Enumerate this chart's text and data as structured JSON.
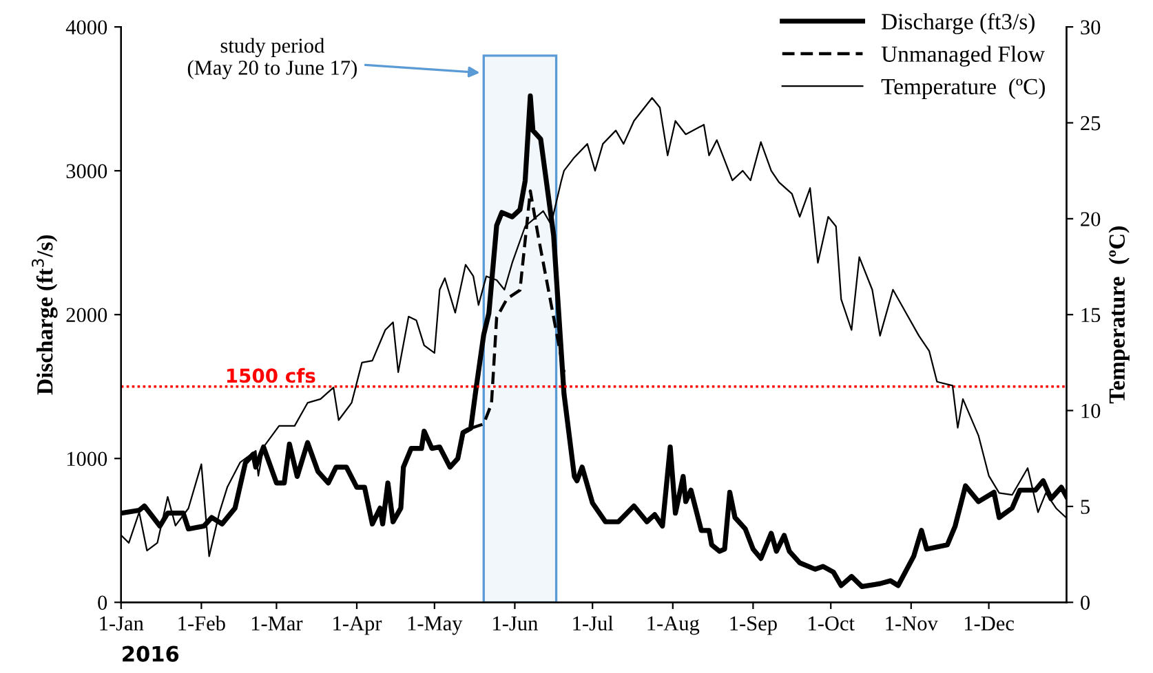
{
  "chart_data": {
    "type": "line",
    "xlabel": "2016",
    "ylabel": "Discharge (ft$^{3}$/s)",
    "y2label": "Temperature  (ºC)",
    "xlim": [
      "2016-01-01",
      "2016-12-31"
    ],
    "xticks": [
      {
        "value": "2016-01-01",
        "label": "1-Jan"
      },
      {
        "value": "2016-02-01",
        "label": "1-Feb"
      },
      {
        "value": "2016-03-01",
        "label": "1-Mar"
      },
      {
        "value": "2016-04-01",
        "label": "1-Apr"
      },
      {
        "value": "2016-05-01",
        "label": "1-May"
      },
      {
        "value": "2016-06-01",
        "label": "1-Jun"
      },
      {
        "value": "2016-07-01",
        "label": "1-Jul"
      },
      {
        "value": "2016-08-01",
        "label": "1-Aug"
      },
      {
        "value": "2016-09-01",
        "label": "1-Sep"
      },
      {
        "value": "2016-10-01",
        "label": "1-Oct"
      },
      {
        "value": "2016-11-01",
        "label": "1-Nov"
      },
      {
        "value": "2016-12-01",
        "label": "1-Dec"
      }
    ],
    "ylim": [
      0,
      4000
    ],
    "yticks": [
      0,
      1000,
      2000,
      3000,
      4000
    ],
    "y2lim": [
      0,
      30
    ],
    "y2ticks": [
      0,
      5,
      10,
      15,
      20,
      25,
      30
    ],
    "legend": "top right",
    "grid": false,
    "marker": "none",
    "series": [
      {
        "name": "Discharge (ft3/s)",
        "color": "#000000",
        "line_style": "solid",
        "x": [
          "2016-01-01",
          "2016-01-08",
          "2016-01-10",
          "2016-01-16",
          "2016-01-19",
          "2016-01-25",
          "2016-01-27",
          "2016-02-02",
          "2016-02-05",
          "2016-02-09",
          "2016-02-14",
          "2016-02-18",
          "2016-02-21",
          "2016-02-22",
          "2016-02-25",
          "2016-03-01",
          "2016-03-04",
          "2016-03-06",
          "2016-03-09",
          "2016-03-13",
          "2016-03-17",
          "2016-03-21",
          "2016-03-24",
          "2016-03-28",
          "2016-04-01",
          "2016-04-04",
          "2016-04-07",
          "2016-04-10",
          "2016-04-11",
          "2016-04-13",
          "2016-04-15",
          "2016-04-18",
          "2016-04-19",
          "2016-04-22",
          "2016-04-26",
          "2016-04-27",
          "2016-04-30",
          "2016-05-03",
          "2016-05-07",
          "2016-05-10",
          "2016-05-12",
          "2016-05-15",
          "2016-05-17",
          "2016-05-20",
          "2016-05-22",
          "2016-05-25",
          "2016-05-27",
          "2016-05-31",
          "2016-06-03",
          "2016-06-05",
          "2016-06-07",
          "2016-06-08",
          "2016-06-11",
          "2016-06-16",
          "2016-06-20",
          "2016-06-24",
          "2016-06-25",
          "2016-06-27",
          "2016-07-01",
          "2016-07-06",
          "2016-07-11",
          "2016-07-17",
          "2016-07-22",
          "2016-07-25",
          "2016-07-28",
          "2016-07-31",
          "2016-08-02",
          "2016-08-05",
          "2016-08-06",
          "2016-08-08",
          "2016-08-12",
          "2016-08-15",
          "2016-08-16",
          "2016-08-19",
          "2016-08-21",
          "2016-08-23",
          "2016-08-25",
          "2016-08-29",
          "2016-09-01",
          "2016-09-04",
          "2016-09-08",
          "2016-09-10",
          "2016-09-13",
          "2016-09-15",
          "2016-09-19",
          "2016-09-25",
          "2016-09-28",
          "2016-10-02",
          "2016-10-05",
          "2016-10-09",
          "2016-10-13",
          "2016-10-20",
          "2016-10-24",
          "2016-10-27",
          "2016-11-02",
          "2016-11-05",
          "2016-11-07",
          "2016-11-15",
          "2016-11-18",
          "2016-11-22",
          "2016-11-27",
          "2016-12-03",
          "2016-12-05",
          "2016-12-10",
          "2016-12-13",
          "2016-12-19",
          "2016-12-22",
          "2016-12-25",
          "2016-12-29",
          "2016-12-31"
        ],
        "values": [
          620,
          640,
          670,
          530,
          620,
          620,
          510,
          530,
          590,
          545,
          655,
          970,
          1030,
          940,
          1080,
          830,
          830,
          1100,
          875,
          1110,
          910,
          830,
          940,
          940,
          800,
          800,
          545,
          655,
          545,
          830,
          560,
          655,
          940,
          1070,
          1070,
          1190,
          1070,
          1080,
          940,
          1000,
          1180,
          1210,
          1480,
          1860,
          2010,
          2620,
          2710,
          2680,
          2730,
          2930,
          3520,
          3280,
          3220,
          2550,
          1450,
          875,
          845,
          940,
          690,
          560,
          560,
          670,
          560,
          610,
          530,
          1080,
          620,
          875,
          700,
          780,
          500,
          500,
          400,
          355,
          370,
          765,
          590,
          510,
          370,
          305,
          480,
          355,
          465,
          355,
          275,
          230,
          250,
          210,
          117,
          180,
          110,
          130,
          150,
          117,
          320,
          500,
          370,
          400,
          530,
          810,
          700,
          765,
          590,
          655,
          780,
          780,
          845,
          720,
          800,
          735
        ]
      },
      {
        "name": "Unmanaged Flow",
        "color": "#000000",
        "line_style": "dashed",
        "x": [
          "2016-05-15",
          "2016-05-20",
          "2016-05-23",
          "2016-05-25",
          "2016-05-29",
          "2016-06-03",
          "2016-06-07",
          "2016-06-10",
          "2016-06-16",
          "2016-06-20"
        ],
        "values": [
          1210,
          1240,
          1380,
          1980,
          2110,
          2170,
          2860,
          2550,
          1980,
          1600
        ]
      },
      {
        "name": "Temperature  (ºC)",
        "color": "#000000",
        "line_style": "solid",
        "axis": "y2",
        "x": [
          "2016-01-01",
          "2016-01-04",
          "2016-01-08",
          "2016-01-11",
          "2016-01-15",
          "2016-01-19",
          "2016-01-22",
          "2016-01-27",
          "2016-02-01",
          "2016-02-04",
          "2016-02-08",
          "2016-02-11",
          "2016-02-16",
          "2016-02-22",
          "2016-02-23",
          "2016-02-25",
          "2016-03-02",
          "2016-03-08",
          "2016-03-13",
          "2016-03-18",
          "2016-03-23",
          "2016-03-25",
          "2016-03-30",
          "2016-04-03",
          "2016-04-07",
          "2016-04-12",
          "2016-04-15",
          "2016-04-17",
          "2016-04-21",
          "2016-04-24",
          "2016-04-27",
          "2016-05-01",
          "2016-05-03",
          "2016-05-05",
          "2016-05-09",
          "2016-05-13",
          "2016-05-16",
          "2016-05-18",
          "2016-05-21",
          "2016-05-25",
          "2016-05-28",
          "2016-05-31",
          "2016-06-05",
          "2016-06-12",
          "2016-06-15",
          "2016-06-19",
          "2016-06-20",
          "2016-06-24",
          "2016-06-29",
          "2016-07-02",
          "2016-07-05",
          "2016-07-10",
          "2016-07-13",
          "2016-07-17",
          "2016-07-24",
          "2016-07-27",
          "2016-07-30",
          "2016-08-02",
          "2016-08-06",
          "2016-08-13",
          "2016-08-15",
          "2016-08-18",
          "2016-08-24",
          "2016-08-28",
          "2016-08-31",
          "2016-09-04",
          "2016-09-08",
          "2016-09-11",
          "2016-09-16",
          "2016-09-19",
          "2016-09-23",
          "2016-09-26",
          "2016-09-28",
          "2016-09-30",
          "2016-10-03",
          "2016-10-05",
          "2016-10-09",
          "2016-10-12",
          "2016-10-17",
          "2016-10-20",
          "2016-10-25",
          "2016-10-30",
          "2016-11-04",
          "2016-11-08",
          "2016-11-11",
          "2016-11-17",
          "2016-11-19",
          "2016-11-21",
          "2016-11-27",
          "2016-12-01",
          "2016-12-05",
          "2016-12-10",
          "2016-12-16",
          "2016-12-20",
          "2016-12-23",
          "2016-12-27",
          "2016-12-31"
        ],
        "values": [
          3.5,
          3.1,
          4.7,
          2.7,
          3.1,
          5.5,
          4.0,
          4.9,
          7.2,
          2.4,
          4.7,
          6.0,
          7.3,
          7.9,
          6.6,
          8.1,
          9.2,
          9.2,
          10.4,
          10.6,
          11.2,
          9.5,
          10.4,
          12.5,
          12.6,
          14.2,
          14.6,
          12.0,
          14.9,
          14.7,
          13.4,
          13.0,
          16.3,
          16.9,
          15.1,
          17.6,
          17.0,
          15.5,
          17.0,
          16.8,
          16.3,
          17.7,
          19.6,
          20.4,
          19.7,
          22.0,
          22.5,
          23.2,
          23.9,
          22.5,
          23.9,
          24.6,
          23.9,
          25.1,
          26.3,
          25.8,
          23.3,
          25.1,
          24.4,
          24.9,
          23.3,
          24.1,
          22.0,
          22.5,
          22.0,
          24.0,
          22.5,
          21.9,
          21.3,
          20.1,
          21.6,
          17.7,
          18.9,
          20.1,
          19.6,
          15.8,
          14.2,
          18.0,
          16.3,
          13.9,
          16.3,
          15.1,
          13.9,
          13.1,
          11.5,
          11.3,
          9.1,
          10.6,
          8.7,
          6.6,
          5.7,
          5.6,
          7.0,
          4.7,
          5.7,
          4.9,
          4.4
        ]
      }
    ],
    "ref_lines": [
      {
        "axis": "y",
        "value": 1500,
        "label": "1500 cfs",
        "color": "#ff0000",
        "line_style": "dotted"
      }
    ],
    "bands": [
      {
        "axis": "x",
        "from": "2016-05-20",
        "to": "2016-06-17",
        "label": "study period\n(May 20 to June 17)",
        "color": "#5b9bd5"
      }
    ]
  }
}
